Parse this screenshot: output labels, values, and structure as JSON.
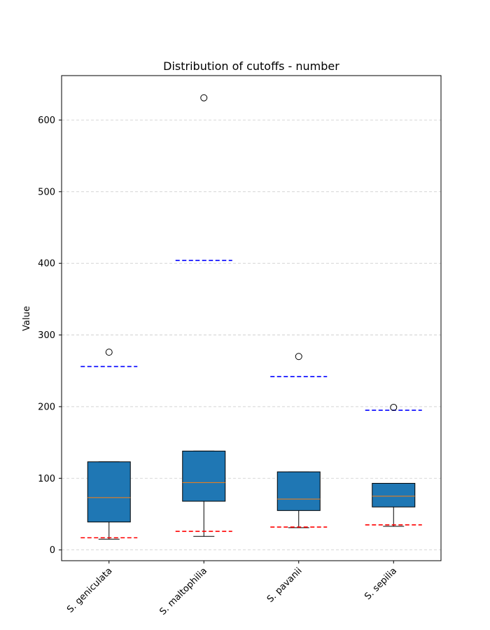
{
  "chart_data": {
    "type": "box",
    "title": "Distribution of cutoffs - number",
    "xlabel": "",
    "ylabel": "Value",
    "ylim": [
      -15,
      662
    ],
    "yticks": [
      0,
      100,
      200,
      300,
      400,
      500,
      600
    ],
    "grid": true,
    "categories": [
      "S. geniculata",
      "S. maltophilia",
      "S. pavanii",
      "S. sepilia"
    ],
    "box_color": "#1f77b4",
    "median_color": "#ff7f0e",
    "upper_line_color": "#0000ff",
    "lower_line_color": "#ff0000",
    "boxes": [
      {
        "name": "S. geniculata",
        "whisker_low": 15,
        "q1": 39,
        "median": 73,
        "q3": 123,
        "whisker_high": 123,
        "outliers": [
          276
        ],
        "upper_line": 256,
        "lower_line": 17
      },
      {
        "name": "S. maltophilia",
        "whisker_low": 19,
        "q1": 68,
        "median": 94,
        "q3": 138,
        "whisker_high": 138,
        "outliers": [
          631
        ],
        "upper_line": 404,
        "lower_line": 26
      },
      {
        "name": "S. pavanii",
        "whisker_low": 31,
        "q1": 55,
        "median": 71,
        "q3": 109,
        "whisker_high": 109,
        "outliers": [
          270
        ],
        "upper_line": 242,
        "lower_line": 32
      },
      {
        "name": "S. sepilia",
        "whisker_low": 33,
        "q1": 60,
        "median": 75,
        "q3": 93,
        "whisker_high": 93,
        "outliers": [
          199
        ],
        "upper_line": 195,
        "lower_line": 35
      }
    ]
  }
}
